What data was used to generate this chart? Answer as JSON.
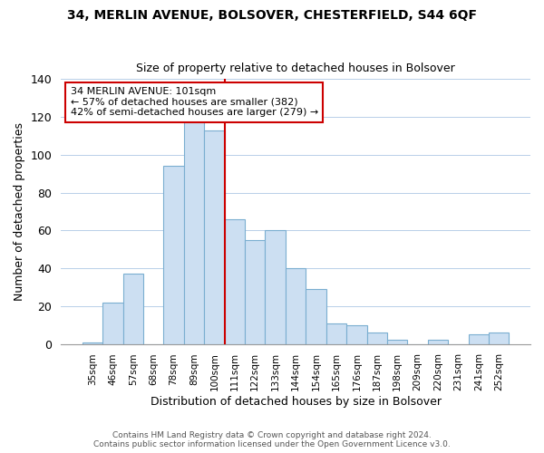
{
  "title1": "34, MERLIN AVENUE, BOLSOVER, CHESTERFIELD, S44 6QF",
  "title2": "Size of property relative to detached houses in Bolsover",
  "xlabel": "Distribution of detached houses by size in Bolsover",
  "ylabel": "Number of detached properties",
  "bar_labels": [
    "35sqm",
    "46sqm",
    "57sqm",
    "68sqm",
    "78sqm",
    "89sqm",
    "100sqm",
    "111sqm",
    "122sqm",
    "133sqm",
    "144sqm",
    "154sqm",
    "165sqm",
    "176sqm",
    "187sqm",
    "198sqm",
    "209sqm",
    "220sqm",
    "231sqm",
    "241sqm",
    "252sqm"
  ],
  "bar_values": [
    1,
    22,
    37,
    0,
    94,
    118,
    113,
    66,
    55,
    60,
    40,
    29,
    11,
    10,
    6,
    2,
    0,
    2,
    0,
    5,
    6
  ],
  "bar_color": "#ccdff2",
  "bar_edge_color": "#7aaed0",
  "vline_color": "#cc0000",
  "annotation_title": "34 MERLIN AVENUE: 101sqm",
  "annotation_line1": "← 57% of detached houses are smaller (382)",
  "annotation_line2": "42% of semi-detached houses are larger (279) →",
  "annotation_box_edge": "#cc0000",
  "ylim": [
    0,
    140
  ],
  "yticks": [
    0,
    20,
    40,
    60,
    80,
    100,
    120,
    140
  ],
  "footnote1": "Contains HM Land Registry data © Crown copyright and database right 2024.",
  "footnote2": "Contains public sector information licensed under the Open Government Licence v3.0."
}
